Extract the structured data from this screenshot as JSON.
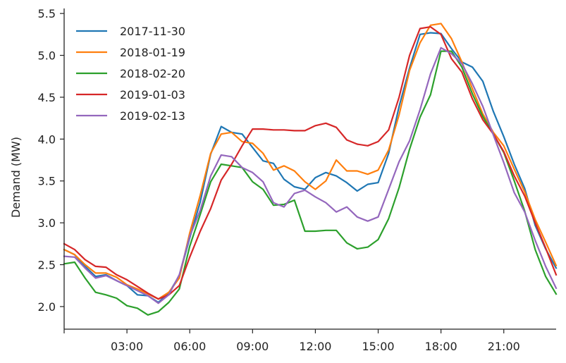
{
  "chart_data": {
    "type": "line",
    "title": "",
    "xlabel": "",
    "ylabel": "Demand (MW)",
    "ylim": [
      1.73,
      5.56
    ],
    "x_hours_range": [
      0,
      23.5
    ],
    "x_ticks": [
      {
        "hour": 3,
        "label": "03:00"
      },
      {
        "hour": 6,
        "label": "06:00"
      },
      {
        "hour": 9,
        "label": "09:00"
      },
      {
        "hour": 12,
        "label": "12:00"
      },
      {
        "hour": 15,
        "label": "15:00"
      },
      {
        "hour": 18,
        "label": "18:00"
      },
      {
        "hour": 21,
        "label": "21:00"
      }
    ],
    "y_ticks": [
      {
        "value": 2.0,
        "label": "2.0"
      },
      {
        "value": 2.5,
        "label": "2.5"
      },
      {
        "value": 3.0,
        "label": "3.0"
      },
      {
        "value": 3.5,
        "label": "3.5"
      },
      {
        "value": 4.0,
        "label": "4.0"
      },
      {
        "value": 4.5,
        "label": "4.5"
      },
      {
        "value": 5.0,
        "label": "5.0"
      },
      {
        "value": 5.5,
        "label": "5.5"
      }
    ],
    "grid": false,
    "legend_position": "top-left",
    "x": [
      "00:00",
      "00:30",
      "01:00",
      "01:30",
      "02:00",
      "02:30",
      "03:00",
      "03:30",
      "04:00",
      "04:30",
      "05:00",
      "05:30",
      "06:00",
      "06:30",
      "07:00",
      "07:30",
      "08:00",
      "08:30",
      "09:00",
      "09:30",
      "10:00",
      "10:30",
      "11:00",
      "11:30",
      "12:00",
      "12:30",
      "13:00",
      "13:30",
      "14:00",
      "14:30",
      "15:00",
      "15:30",
      "16:00",
      "16:30",
      "17:00",
      "17:30",
      "18:00",
      "18:30",
      "19:00",
      "19:30",
      "20:00",
      "20:30",
      "21:00",
      "21:30",
      "22:00",
      "22:30",
      "23:00",
      "23:30"
    ],
    "series": [
      {
        "name": "2017-11-30",
        "color": "#1f77b4",
        "values": [
          2.68,
          2.62,
          2.48,
          2.36,
          2.38,
          2.31,
          2.25,
          2.14,
          2.13,
          2.05,
          2.16,
          2.37,
          2.82,
          3.25,
          3.82,
          4.15,
          4.08,
          4.06,
          3.9,
          3.74,
          3.71,
          3.52,
          3.43,
          3.4,
          3.54,
          3.6,
          3.56,
          3.48,
          3.38,
          3.46,
          3.48,
          3.83,
          4.39,
          4.85,
          5.25,
          5.27,
          5.26,
          5.08,
          4.92,
          4.86,
          4.69,
          4.33,
          4.03,
          3.7,
          3.41,
          2.97,
          2.69,
          2.46
        ]
      },
      {
        "name": "2018-01-19",
        "color": "#ff7f0e",
        "values": [
          2.68,
          2.62,
          2.5,
          2.4,
          2.4,
          2.35,
          2.26,
          2.21,
          2.15,
          2.09,
          2.17,
          2.34,
          2.88,
          3.33,
          3.83,
          4.06,
          4.08,
          3.97,
          3.95,
          3.83,
          3.63,
          3.68,
          3.62,
          3.49,
          3.4,
          3.5,
          3.75,
          3.62,
          3.62,
          3.58,
          3.63,
          3.87,
          4.29,
          4.82,
          5.15,
          5.36,
          5.38,
          5.2,
          4.92,
          4.6,
          4.3,
          4.08,
          3.92,
          3.64,
          3.37,
          3.04,
          2.77,
          2.49
        ]
      },
      {
        "name": "2018-02-20",
        "color": "#2ca02c",
        "values": [
          2.51,
          2.53,
          2.34,
          2.17,
          2.14,
          2.1,
          2.01,
          1.98,
          1.9,
          1.94,
          2.05,
          2.21,
          2.72,
          3.1,
          3.49,
          3.7,
          3.68,
          3.66,
          3.49,
          3.4,
          3.21,
          3.22,
          3.27,
          2.9,
          2.9,
          2.91,
          2.91,
          2.76,
          2.69,
          2.71,
          2.8,
          3.05,
          3.42,
          3.88,
          4.26,
          4.53,
          5.05,
          5.05,
          4.86,
          4.54,
          4.27,
          4.06,
          3.84,
          3.5,
          3.14,
          2.68,
          2.36,
          2.15
        ]
      },
      {
        "name": "2019-01-03",
        "color": "#d62728",
        "values": [
          2.75,
          2.68,
          2.56,
          2.48,
          2.47,
          2.38,
          2.32,
          2.24,
          2.16,
          2.09,
          2.14,
          2.25,
          2.59,
          2.9,
          3.17,
          3.51,
          3.7,
          3.92,
          4.12,
          4.12,
          4.11,
          4.11,
          4.1,
          4.1,
          4.16,
          4.19,
          4.14,
          3.99,
          3.94,
          3.92,
          3.97,
          4.11,
          4.5,
          5.0,
          5.32,
          5.34,
          5.25,
          4.96,
          4.8,
          4.48,
          4.23,
          4.06,
          3.85,
          3.56,
          3.32,
          3.0,
          2.7,
          2.38
        ]
      },
      {
        "name": "2019-02-13",
        "color": "#9467bd",
        "values": [
          2.6,
          2.59,
          2.46,
          2.34,
          2.37,
          2.31,
          2.25,
          2.19,
          2.13,
          2.04,
          2.14,
          2.38,
          2.84,
          3.15,
          3.56,
          3.81,
          3.79,
          3.66,
          3.6,
          3.49,
          3.24,
          3.19,
          3.35,
          3.39,
          3.31,
          3.24,
          3.13,
          3.19,
          3.07,
          3.02,
          3.07,
          3.4,
          3.73,
          3.98,
          4.35,
          4.78,
          5.09,
          5.02,
          4.9,
          4.66,
          4.39,
          4.05,
          3.72,
          3.36,
          3.13,
          2.79,
          2.48,
          2.22
        ]
      }
    ]
  }
}
